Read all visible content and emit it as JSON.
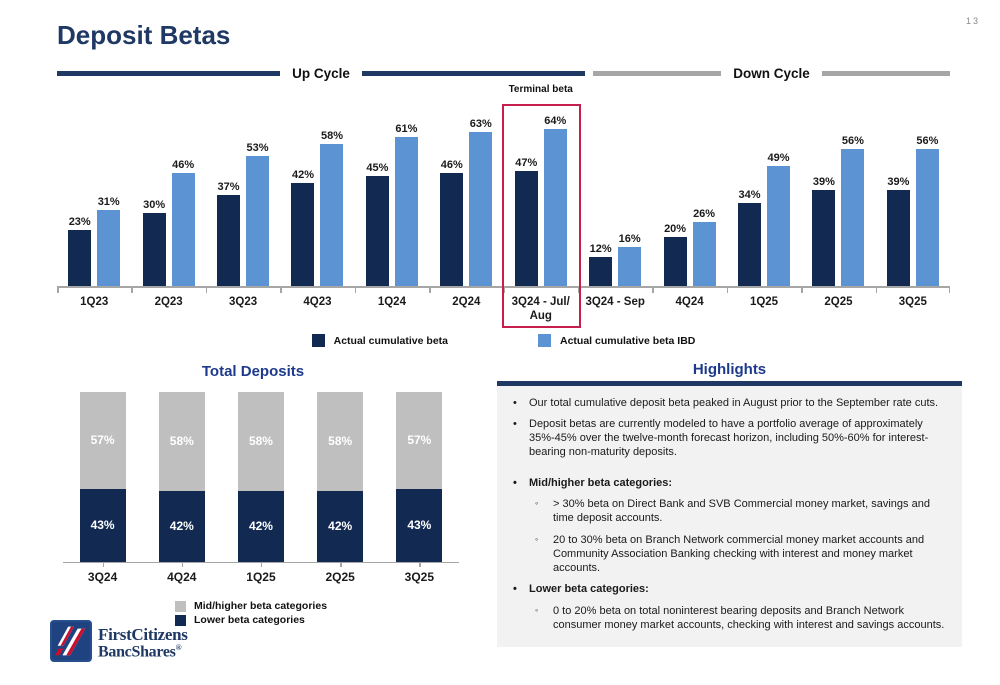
{
  "page_number": "13",
  "title": "Deposit Betas",
  "cycle_header": {
    "up_label": "Up Cycle",
    "down_label": "Down Cycle"
  },
  "colors": {
    "navy": "#122A52",
    "light_blue": "#5B93D3",
    "gray_bar": "#BFBFBF",
    "axis_gray": "#A6A6A6",
    "title_blue": "#1F3864",
    "section_blue": "#1E3A8C",
    "red_box": "#C81E4E",
    "highlight_bg": "#F2F2F2"
  },
  "chart_data": [
    {
      "name": "deposit-betas-by-quarter",
      "type": "bar",
      "title": "",
      "unit": "%",
      "ylim": [
        0,
        70
      ],
      "grid": false,
      "legend_position": "bottom",
      "categories": [
        "1Q23",
        "2Q23",
        "3Q23",
        "4Q23",
        "1Q24",
        "2Q24",
        "3Q24 - Jul/\nAug",
        "3Q24 - Sep",
        "4Q24",
        "1Q25",
        "2Q25",
        "3Q25"
      ],
      "series": [
        {
          "name": "Actual cumulative beta",
          "color_key": "navy",
          "values": [
            23,
            30,
            37,
            42,
            45,
            46,
            47,
            12,
            20,
            34,
            39,
            39
          ]
        },
        {
          "name": "Actual cumulative beta IBD",
          "color_key": "light_blue",
          "values": [
            31,
            46,
            53,
            58,
            61,
            63,
            64,
            16,
            26,
            49,
            56,
            56
          ]
        }
      ],
      "sections": {
        "up_cycle_categories": [
          0,
          6
        ],
        "down_cycle_categories": [
          7,
          11
        ]
      },
      "annotation": {
        "label": "Terminal beta",
        "highlighted_category": "3Q24 - Jul/ Aug",
        "highlighted_index": 6
      }
    },
    {
      "name": "total-deposits-mix",
      "type": "stacked_bar",
      "title": "Total Deposits",
      "unit": "%",
      "ylim": [
        0,
        100
      ],
      "grid": false,
      "legend_position": "bottom",
      "categories": [
        "3Q24",
        "4Q24",
        "1Q25",
        "2Q25",
        "3Q25"
      ],
      "series": [
        {
          "name": "Mid/higher beta categories",
          "color_key": "gray_bar",
          "values": [
            57,
            58,
            58,
            58,
            57
          ]
        },
        {
          "name": "Lower beta categories",
          "color_key": "navy",
          "values": [
            43,
            42,
            42,
            42,
            43
          ]
        }
      ]
    }
  ],
  "legend_main": [
    {
      "label": "Actual cumulative beta",
      "color_key": "navy"
    },
    {
      "label": "Actual cumulative beta IBD",
      "color_key": "light_blue"
    }
  ],
  "legend_deposits": [
    {
      "label": "Mid/higher beta categories",
      "color_key": "gray_bar"
    },
    {
      "label": "Lower beta categories",
      "color_key": "navy"
    }
  ],
  "terminal_beta_label": "Terminal beta",
  "total_deposits_title": "Total Deposits",
  "highlights": {
    "title": "Highlights",
    "items": [
      {
        "level": 1,
        "bold": false,
        "gap_before": false,
        "text": "Our total cumulative deposit beta peaked in August prior to the September rate cuts."
      },
      {
        "level": 1,
        "bold": false,
        "gap_before": false,
        "text": "Deposit betas are currently modeled to have a portfolio average of approximately 35%-45% over the twelve-month forecast horizon, including 50%-60% for interest-bearing non-maturity deposits."
      },
      {
        "level": 1,
        "bold": true,
        "gap_before": true,
        "text": "Mid/higher beta categories:"
      },
      {
        "level": 2,
        "bold": false,
        "gap_before": false,
        "text": "> 30% beta on Direct Bank and SVB Commercial money market, savings and time deposit accounts."
      },
      {
        "level": 2,
        "bold": false,
        "gap_before": false,
        "text": "20 to 30% beta on Branch Network commercial money market accounts and Community Association Banking checking with interest and money market accounts."
      },
      {
        "level": 1,
        "bold": true,
        "gap_before": false,
        "text": "Lower beta categories:"
      },
      {
        "level": 2,
        "bold": false,
        "gap_before": false,
        "text": "0 to 20% beta on total noninterest bearing deposits and Branch Network consumer money market accounts, checking with interest and savings accounts."
      }
    ]
  },
  "logo": {
    "line1": "FirstCitizens",
    "line2": "BancShares",
    "registered": "®"
  }
}
